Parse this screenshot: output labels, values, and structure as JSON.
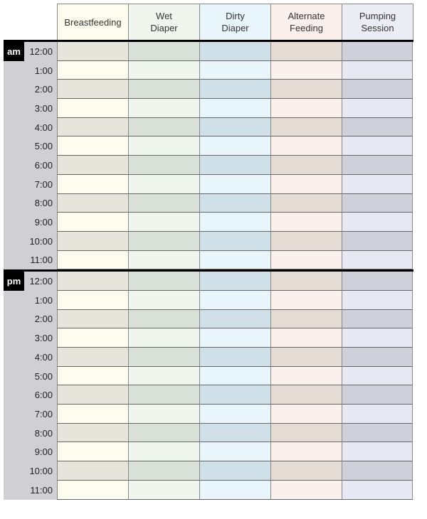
{
  "columns": [
    {
      "label_lines": [
        "Breastfeeding"
      ],
      "header_color": "#fefef0",
      "light": "#fefef0",
      "dark": "#e5e5dc"
    },
    {
      "label_lines": [
        "Wet",
        "Diaper"
      ],
      "header_color": "#f0f5ee",
      "light": "#f0f5ee",
      "dark": "#d8e0d8"
    },
    {
      "label_lines": [
        "Dirty",
        "Diaper"
      ],
      "header_color": "#e8f6fc",
      "light": "#e8f6fc",
      "dark": "#d0e0e8"
    },
    {
      "label_lines": [
        "Alternate",
        "Feeding"
      ],
      "header_color": "#fcf0ec",
      "light": "#fcf0ec",
      "dark": "#e5dbd5"
    },
    {
      "label_lines": [
        "Pumping",
        "Session"
      ],
      "header_color": "#ececf4",
      "light": "#e8e8f4",
      "dark": "#d0d0da"
    }
  ],
  "periods": [
    {
      "badge": "am",
      "times": [
        "12:00",
        "1:00",
        "2:00",
        "3:00",
        "4:00",
        "5:00",
        "6:00",
        "7:00",
        "8:00",
        "9:00",
        "10:00",
        "11:00"
      ]
    },
    {
      "badge": "pm",
      "times": [
        "12:00",
        "1:00",
        "2:00",
        "3:00",
        "4:00",
        "5:00",
        "6:00",
        "7:00",
        "8:00",
        "9:00",
        "10:00",
        "11:00"
      ]
    }
  ]
}
